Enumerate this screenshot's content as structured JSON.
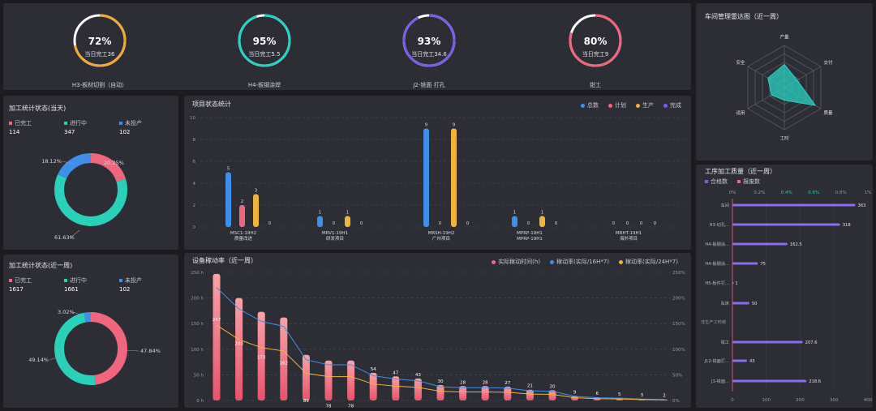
{
  "gauges": [
    {
      "pct": "72%",
      "sub": "当日完工36",
      "label": "H3-板材切割（自动）",
      "value": 0.72,
      "color": "#f0a83a"
    },
    {
      "pct": "95%",
      "sub": "当日完工5.5",
      "label": "H4-板钢涂焊",
      "value": 0.95,
      "color": "#2ad0c2"
    },
    {
      "pct": "93%",
      "sub": "当日完工34.6",
      "label": "J2-铣面 打孔",
      "value": 0.93,
      "color": "#7b5ce8"
    },
    {
      "pct": "80%",
      "sub": "当日完工9",
      "label": "钳工",
      "value": 0.8,
      "color": "#f0667e"
    }
  ],
  "today": {
    "title": "加工统计状态(当天)",
    "stats": [
      {
        "label": "已完工",
        "value": "114",
        "color": "#f0667e"
      },
      {
        "label": "进行中",
        "value": "347",
        "color": "#2ad0b8"
      },
      {
        "label": "未投产",
        "value": "102",
        "color": "#3f8fe8"
      }
    ],
    "donut_labels": [
      "18.12%",
      "20.25%",
      "61.63%"
    ]
  },
  "week": {
    "title": "加工统计状态(近一周)",
    "stats": [
      {
        "label": "已完工",
        "value": "1617",
        "color": "#f0667e"
      },
      {
        "label": "进行中",
        "value": "1661",
        "color": "#2ad0b8"
      },
      {
        "label": "未投产",
        "value": "102",
        "color": "#3f8fe8"
      }
    ],
    "donut_labels": [
      "3.02%",
      "49.14%",
      "47.84%"
    ]
  },
  "project": {
    "title": "项目状态统计",
    "legend": [
      "总数",
      "计划",
      "生产",
      "完成"
    ],
    "legend_colors": [
      "#3f8fe8",
      "#f0667e",
      "#f0b43a",
      "#7b5ce8"
    ],
    "yticks": [
      "10",
      "8",
      "6",
      "4",
      "2",
      "0"
    ],
    "groups": [
      {
        "l1": "MSC1-19H2",
        "l2": "质量改进",
        "values": [
          5,
          2,
          3,
          0
        ]
      },
      {
        "l1": "MRV1-19H1",
        "l2": "研发项目",
        "values": [
          1,
          0,
          1,
          0
        ]
      },
      {
        "l1": "MRSH-19H2",
        "l2": "广州项目",
        "values": [
          9,
          0,
          9,
          0
        ]
      },
      {
        "l1": "MPRP-19H1",
        "l2": "MPRP-19H1",
        "values": [
          1,
          0,
          1,
          0
        ]
      },
      {
        "l1": "MRHT-19H1",
        "l2": "海外项目",
        "values": [
          0,
          0,
          0,
          0
        ]
      }
    ]
  },
  "equipment": {
    "title": "设备稼动率（近一周）",
    "legend": [
      "实际稼动时间(h)",
      "稼动率(实际/16H*7)",
      "稼动率(实际/24H*7)"
    ],
    "legend_colors": [
      "#f0667e",
      "#3f8fe8",
      "#f0b43a"
    ],
    "yleft": [
      "250 h",
      "200 h",
      "150 h",
      "100 h",
      "50 h",
      "0 h"
    ],
    "yright": [
      "250%",
      "200%",
      "150%",
      "100%",
      "50%",
      "0%"
    ],
    "hours": [
      247,
      200,
      173,
      162,
      89,
      78,
      78,
      54,
      47,
      43,
      30,
      28,
      28,
      27,
      21,
      20,
      9,
      6,
      5,
      3,
      2
    ],
    "bar_labels": [
      "247",
      "200",
      "173",
      "162",
      "89",
      "78",
      "78",
      "54",
      "47",
      "43",
      "30",
      "28",
      "28",
      "27",
      "21",
      "20",
      "9",
      "6",
      "5",
      "3",
      "2"
    ]
  },
  "radar": {
    "title": "车间管理雷达图（近一周）",
    "axes": [
      "产量",
      "交付",
      "质量",
      "工时",
      "运用",
      "安全"
    ],
    "values": [
      0.55,
      0.35,
      0.85,
      0.3,
      0.35,
      0.45
    ]
  },
  "quality": {
    "title": "工序加工质量（近一周）",
    "legend": [
      "合格数",
      "报废数"
    ],
    "legend_colors": [
      "#7b5ce8",
      "#f0667e"
    ],
    "top_ticks": [
      "0%",
      "0.2%",
      "0.4%",
      "0.6%",
      "0.8%",
      "1%"
    ],
    "bottom_ticks": [
      "0",
      "100",
      "200",
      "300",
      "400"
    ],
    "section_label": "非生产工时统",
    "rows": [
      {
        "name": "车间",
        "value": 363,
        "label": "363"
      },
      {
        "name": "H3-切孔...",
        "value": 318,
        "label": "318"
      },
      {
        "name": "H4-板钢涂...",
        "value": 162.5,
        "label": "162.5"
      },
      {
        "name": "H4-板钢涂...",
        "value": 75,
        "label": "75"
      },
      {
        "name": "H5-板件打...",
        "value": 1,
        "label": "1"
      },
      {
        "name": "车床",
        "value": 50,
        "label": "50"
      },
      {
        "name": "钳工",
        "value": 207.6,
        "label": "207.6"
      },
      {
        "name": "J12-铣面打...",
        "value": 43,
        "label": "43"
      },
      {
        "name": "J3-铣面...",
        "value": 218.6,
        "label": "218.6"
      }
    ]
  }
}
